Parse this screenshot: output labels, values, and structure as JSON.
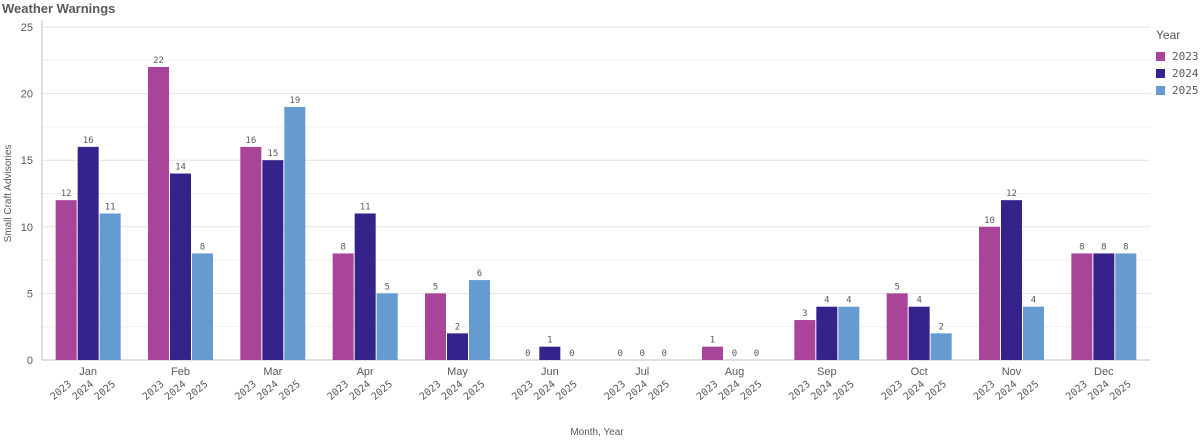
{
  "title": "Weather Warnings",
  "chart_data": {
    "type": "bar",
    "categories": [
      "Jan",
      "Feb",
      "Mar",
      "Apr",
      "May",
      "Jun",
      "Jul",
      "Aug",
      "Sep",
      "Oct",
      "Nov",
      "Dec"
    ],
    "series": [
      {
        "name": "2023",
        "color": "#a8449a",
        "values": [
          12,
          22,
          16,
          8,
          5,
          0,
          0,
          1,
          3,
          5,
          10,
          8
        ]
      },
      {
        "name": "2024",
        "color": "#35228b",
        "values": [
          16,
          14,
          15,
          11,
          2,
          1,
          0,
          0,
          4,
          4,
          12,
          8
        ]
      },
      {
        "name": "2025",
        "color": "#659bd0",
        "values": [
          11,
          8,
          19,
          5,
          6,
          0,
          0,
          0,
          4,
          2,
          4,
          8
        ]
      }
    ],
    "xlabel": "Month, Year",
    "ylabel": "Small Craft Advisories",
    "ylim": [
      0,
      25
    ],
    "yticks": [
      0,
      5,
      10,
      15,
      20,
      25
    ],
    "grid": true,
    "legend_title": "Year",
    "legend_position": "right"
  }
}
